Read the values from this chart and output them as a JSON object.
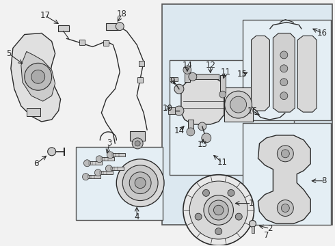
{
  "bg": "#f2f2f2",
  "white": "#ffffff",
  "grid_bg": "#dce8f0",
  "lc": "#2a2a2a",
  "lc2": "#444444",
  "box_edge": "#555555",
  "label_fs": 8.5,
  "arrow_fs": 0.7
}
